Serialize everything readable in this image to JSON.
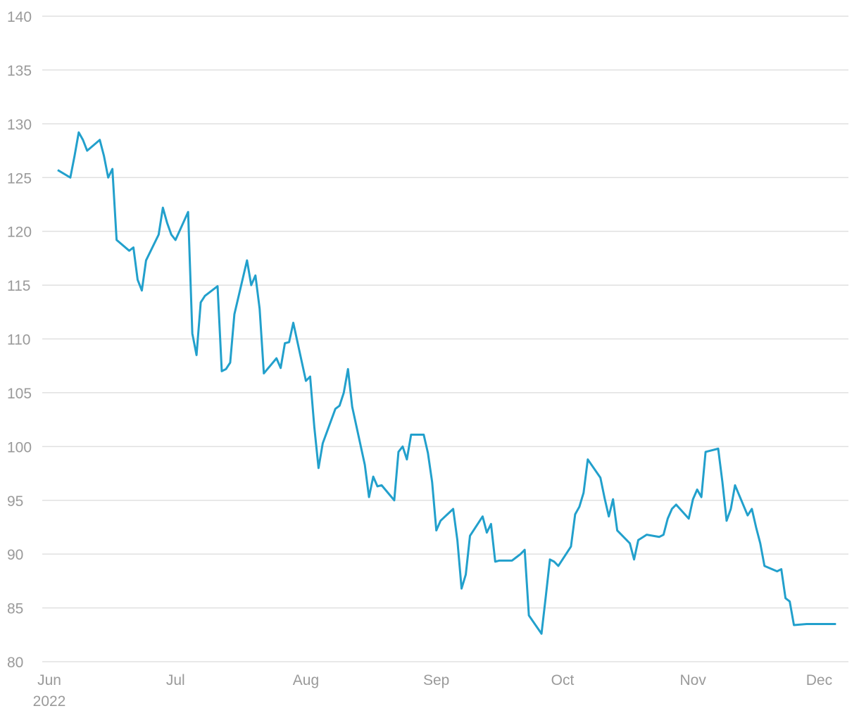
{
  "chart_data": {
    "type": "line",
    "x": [
      2,
      5,
      6,
      7,
      8,
      9,
      12,
      13,
      14,
      15,
      16,
      19,
      20,
      21,
      22,
      23,
      26,
      27,
      28,
      29,
      30,
      33,
      34,
      35,
      36,
      37,
      40,
      41,
      42,
      43,
      44,
      47,
      48,
      49,
      50,
      51,
      54,
      55,
      56,
      57,
      58,
      61,
      62,
      63,
      64,
      65,
      68,
      69,
      70,
      71,
      72,
      75,
      76,
      77,
      78,
      79,
      82,
      83,
      84,
      85,
      86,
      89,
      90,
      91,
      92,
      93,
      96,
      97,
      98,
      99,
      100,
      103,
      104,
      105,
      106,
      107,
      110,
      111,
      112,
      113,
      114,
      117,
      118,
      119,
      120,
      121,
      124,
      125,
      126,
      127,
      128,
      131,
      132,
      133,
      134,
      135,
      138,
      139,
      140,
      142,
      145,
      146,
      147,
      148,
      149,
      152,
      153,
      154,
      155,
      156,
      159,
      160,
      161,
      162,
      163,
      166,
      167,
      168,
      169,
      170,
      173,
      174,
      175,
      176,
      177,
      180,
      187
    ],
    "series": [
      {
        "color": "#22a0cc",
        "values": [
          125.7,
          125.0,
          127,
          129.2,
          128.5,
          127.5,
          128.5,
          127,
          125,
          125.8,
          119.2,
          118.2,
          118.5,
          115.5,
          114.5,
          117.3,
          119.7,
          122.2,
          120.8,
          119.7,
          119.2,
          121.8,
          110.5,
          108.5,
          113.4,
          114,
          114.9,
          107,
          107.2,
          107.8,
          112.3,
          117.3,
          115,
          115.9,
          112.8,
          106.8,
          108.2,
          107.3,
          109.6,
          109.7,
          111.5,
          106.1,
          106.5,
          101.8,
          98,
          100.3,
          103.5,
          103.8,
          105,
          107.2,
          103.7,
          98.3,
          95.3,
          97.2,
          96.3,
          96.4,
          95,
          99.5,
          100,
          98.8,
          101.1,
          101.1,
          99.4,
          96.7,
          92.2,
          93.1,
          94.2,
          91.3,
          86.8,
          88.1,
          91.7,
          93.5,
          92,
          92.8,
          89.3,
          89.4,
          89.4,
          89.7,
          90,
          90.4,
          84.3,
          82.6,
          86,
          89.5,
          89.3,
          88.9,
          90.7,
          93.7,
          94.4,
          95.7,
          98.8,
          97.1,
          95.2,
          93.5,
          95.1,
          92.2,
          91,
          89.5,
          91.3,
          91.8,
          91.6,
          91.8,
          93.3,
          94.2,
          94.6,
          93.3,
          95.1,
          96,
          95.3,
          99.5,
          99.8,
          96.7,
          93.1,
          94.2,
          96.4,
          93.6,
          94.2,
          92.5,
          91,
          88.9,
          88.4,
          88.6,
          85.9,
          85.6,
          83.4,
          83.5,
          83.5
        ]
      }
    ],
    "xlim": [
      0,
      190
    ],
    "xticks": [
      {
        "value": 0,
        "label": "Jun"
      },
      {
        "value": 30,
        "label": "Jul"
      },
      {
        "value": 61,
        "label": "Aug"
      },
      {
        "value": 92,
        "label": "Sep"
      },
      {
        "value": 122,
        "label": "Oct"
      },
      {
        "value": 153,
        "label": "Nov"
      },
      {
        "value": 183,
        "label": "Dec"
      }
    ],
    "x_year": "2022",
    "ylim": [
      80,
      140
    ],
    "yticks": [
      80,
      85,
      90,
      95,
      100,
      105,
      110,
      115,
      120,
      125,
      130,
      135,
      140
    ],
    "grid": true
  }
}
